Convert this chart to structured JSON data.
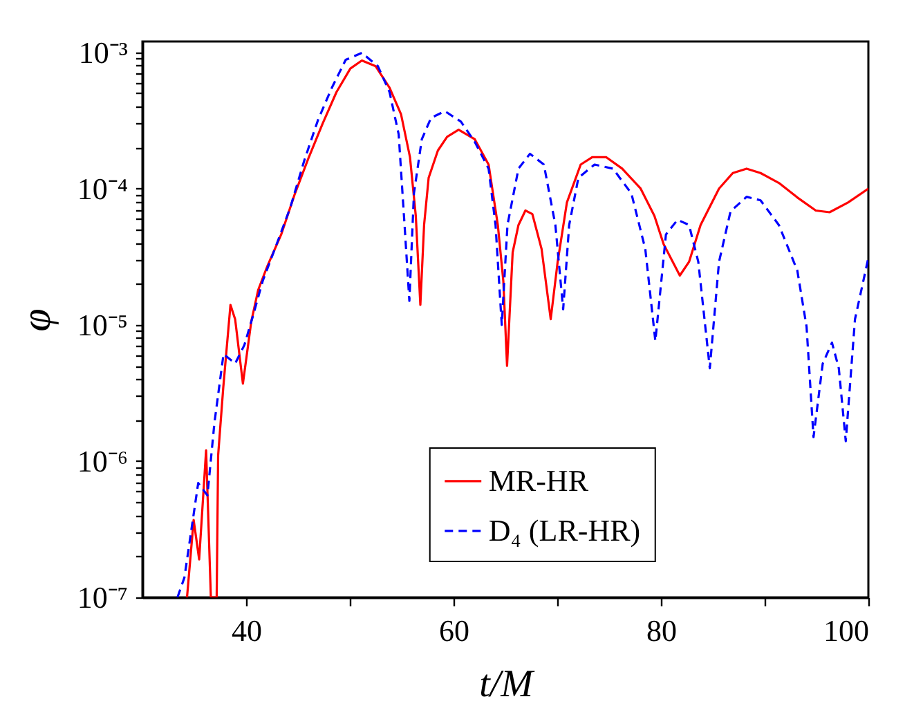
{
  "chart_data": {
    "type": "line",
    "xlabel": "t/M",
    "ylabel": "φ",
    "log": "y",
    "legend": "bottom right",
    "grid": false,
    "marker": "none",
    "xlim": [
      30,
      100
    ],
    "xticks": [
      40,
      {
        "value": 50,
        "label": null
      },
      60,
      {
        "value": 70,
        "label": null
      },
      80,
      {
        "value": 90,
        "label": null
      },
      100
    ],
    "ylim": [
      1e-07,
      0.0012
    ],
    "yticks": [
      {
        "value": 1e-07,
        "label": "10⁻⁷"
      },
      {
        "value": 2e-07,
        "label": null
      },
      {
        "value": 3e-07,
        "label": null
      },
      {
        "value": 4e-07,
        "label": null
      },
      {
        "value": 5e-07,
        "label": null
      },
      {
        "value": 6e-07,
        "label": null
      },
      {
        "value": 7e-07,
        "label": null
      },
      {
        "value": 8e-07,
        "label": null
      },
      {
        "value": 9e-07,
        "label": null
      },
      {
        "value": 1e-06,
        "label": "10⁻⁶"
      },
      {
        "value": 2e-06,
        "label": null
      },
      {
        "value": 3e-06,
        "label": null
      },
      {
        "value": 4e-06,
        "label": null
      },
      {
        "value": 5e-06,
        "label": null
      },
      {
        "value": 6e-06,
        "label": null
      },
      {
        "value": 7e-06,
        "label": null
      },
      {
        "value": 8e-06,
        "label": null
      },
      {
        "value": 9e-06,
        "label": null
      },
      {
        "value": 1e-05,
        "label": "10⁻⁵"
      },
      {
        "value": 2e-05,
        "label": null
      },
      {
        "value": 3e-05,
        "label": null
      },
      {
        "value": 4e-05,
        "label": null
      },
      {
        "value": 5e-05,
        "label": null
      },
      {
        "value": 6e-05,
        "label": null
      },
      {
        "value": 7e-05,
        "label": null
      },
      {
        "value": 8e-05,
        "label": null
      },
      {
        "value": 9e-05,
        "label": null
      },
      {
        "value": 0.0001,
        "label": "10⁻⁴"
      },
      {
        "value": 0.0002,
        "label": null
      },
      {
        "value": 0.0003,
        "label": null
      },
      {
        "value": 0.0004,
        "label": null
      },
      {
        "value": 0.0005,
        "label": null
      },
      {
        "value": 0.0006,
        "label": null
      },
      {
        "value": 0.0007,
        "label": null
      },
      {
        "value": 0.0008,
        "label": null
      },
      {
        "value": 0.0009,
        "label": null
      },
      {
        "value": 0.001,
        "label": "10⁻³"
      }
    ],
    "series": [
      {
        "name": "MR-HR",
        "color": "#ff0000",
        "line_style": "solid",
        "x": [
          34.3,
          34.94,
          35.47,
          36.14,
          36.6,
          37.16,
          37.3,
          37.8,
          38.49,
          38.94,
          39.69,
          40.49,
          41.16,
          42.05,
          43.38,
          44.71,
          46.05,
          47.38,
          48.71,
          50.05,
          51.16,
          52.49,
          53.83,
          54.94,
          55.8,
          56.36,
          56.8,
          57.16,
          57.6,
          58.49,
          59.38,
          60.49,
          62.05,
          63.38,
          64.27,
          64.8,
          65.16,
          65.7,
          66.26,
          66.93,
          67.6,
          68.49,
          69.37,
          70.04,
          70.93,
          72.26,
          73.37,
          74.71,
          76.26,
          78.04,
          79.37,
          80.26,
          81.82,
          82.71,
          83.82,
          85.6,
          86.93,
          88.26,
          89.6,
          91.37,
          93.15,
          94.93,
          96.26,
          98.04,
          100
        ],
        "values": [
          1e-07,
          3.7e-07,
          1.9e-07,
          1.2e-06,
          1e-07,
          1e-07,
          1.1e-06,
          3.5e-06,
          1.4e-05,
          1.1e-05,
          3.7e-06,
          1.05e-05,
          1.8e-05,
          2.7e-05,
          4.6e-05,
          9.2e-05,
          0.00017,
          0.0003,
          0.00051,
          0.00076,
          0.00087,
          0.00079,
          0.00055,
          0.00035,
          0.00017,
          6.3e-05,
          1.4e-05,
          5.4e-05,
          0.00012,
          0.00019,
          0.00024,
          0.00027,
          0.00023,
          0.00015,
          5.4e-05,
          2.1e-05,
          5e-06,
          3.4e-05,
          5.4e-05,
          6.9e-05,
          6.5e-05,
          3.6e-05,
          1.1e-05,
          2.9e-05,
          7.9e-05,
          0.00015,
          0.00017,
          0.00017,
          0.00014,
          0.0001,
          6.3e-05,
          3.9e-05,
          2.3e-05,
          2.9e-05,
          5.4e-05,
          0.0001,
          0.00013,
          0.00014,
          0.00013,
          0.00011,
          8.6e-05,
          6.9e-05,
          6.7e-05,
          7.9e-05,
          0.0001
        ]
      },
      {
        "name": "D₄ (LR-HR)",
        "color": "#0000ff",
        "line_style": "dashed",
        "x": [
          33.38,
          34.05,
          35.38,
          36.27,
          36.94,
          37.82,
          38.94,
          39.83,
          40.71,
          41.6,
          42.94,
          44.27,
          45.6,
          46.94,
          48.27,
          49.6,
          51.16,
          52.71,
          53.83,
          54.71,
          55.25,
          55.74,
          56.18,
          56.94,
          57.83,
          59.16,
          60.71,
          62.05,
          63.38,
          64.05,
          64.65,
          65.2,
          66.26,
          67.37,
          68.71,
          69.82,
          70.57,
          71.15,
          72.04,
          73.6,
          75.37,
          77.15,
          78.49,
          79.46,
          80.48,
          81.6,
          82.71,
          83.6,
          84.71,
          85.6,
          86.71,
          88.26,
          89.6,
          91.37,
          93.15,
          94.04,
          94.71,
          95.6,
          96.49,
          97.15,
          97.82,
          98.71,
          100
        ],
        "values": [
          1e-07,
          1.4e-07,
          6.9e-07,
          5.6e-07,
          1.9e-06,
          6.1e-06,
          5.2e-06,
          7.1e-06,
          1.2e-05,
          2.1e-05,
          3.9e-05,
          7.3e-05,
          0.00016,
          0.00032,
          0.00055,
          0.00088,
          0.00099,
          0.00079,
          0.00051,
          0.00025,
          5.8e-05,
          1.5e-05,
          9.2e-05,
          0.00023,
          0.00033,
          0.00037,
          0.00031,
          0.00022,
          0.00014,
          5.4e-05,
          1e-05,
          5.4e-05,
          0.00014,
          0.00018,
          0.00015,
          5.4e-05,
          1.3e-05,
          5.4e-05,
          0.00012,
          0.00015,
          0.00014,
          9.2e-05,
          3.6e-05,
          7.6e-06,
          4.6e-05,
          5.9e-05,
          5.4e-05,
          2.9e-05,
          4.8e-06,
          2.9e-05,
          6.8e-05,
          8.7e-05,
          8.2e-05,
          5.4e-05,
          2.5e-05,
          9.7e-06,
          1.5e-06,
          5.2e-06,
          7.4e-06,
          4.8e-06,
          1.4e-06,
          1.1e-05,
          3.1e-05
        ]
      }
    ]
  }
}
